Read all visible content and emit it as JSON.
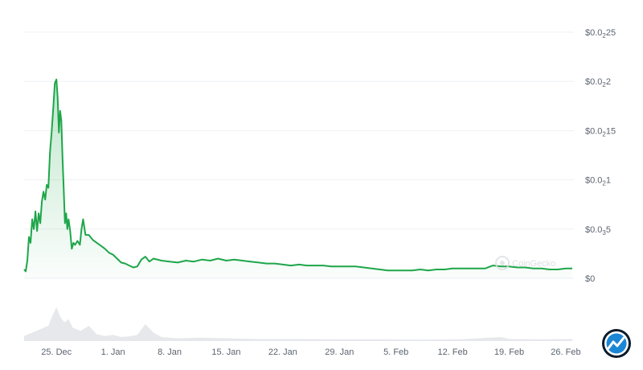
{
  "chart_data": {
    "type": "area",
    "title": "",
    "xlabel": "",
    "ylabel": "",
    "y_tick_labels": [
      {
        "value": 0,
        "base": "$0",
        "sub": "",
        "tail": ""
      },
      {
        "value": 0.0005,
        "base": "$0.0",
        "sub": "3",
        "tail": "5"
      },
      {
        "value": 0.001,
        "base": "$0.0",
        "sub": "2",
        "tail": "1"
      },
      {
        "value": 0.0015,
        "base": "$0.0",
        "sub": "2",
        "tail": "15"
      },
      {
        "value": 0.002,
        "base": "$0.0",
        "sub": "2",
        "tail": "2"
      },
      {
        "value": 0.0025,
        "base": "$0.0",
        "sub": "2",
        "tail": "25"
      }
    ],
    "ylim": [
      0,
      0.0025
    ],
    "x_tick_labels": [
      "25. Dec",
      "1. Jan",
      "8. Jan",
      "15. Jan",
      "22. Jan",
      "29. Jan",
      "5. Feb",
      "12. Feb",
      "19. Feb",
      "26. Feb"
    ],
    "x_tick_days": [
      0,
      7,
      14,
      21,
      28,
      35,
      42,
      49,
      56,
      63
    ],
    "xlim_days": [
      -4,
      64
    ],
    "grid": true,
    "line_color": "#1ea64a",
    "fill_color": "#1ea64a",
    "volume_color": "#e6e8eb",
    "series": [
      {
        "values": [
          [
            -4.0,
            9e-05
          ],
          [
            -3.8,
            7e-05
          ],
          [
            -3.6,
            0.00018
          ],
          [
            -3.4,
            0.00042
          ],
          [
            -3.2,
            0.00036
          ],
          [
            -3.0,
            0.0006
          ],
          [
            -2.8,
            0.0005
          ],
          [
            -2.6,
            0.00068
          ],
          [
            -2.4,
            0.00048
          ],
          [
            -2.2,
            0.00066
          ],
          [
            -2.0,
            0.00056
          ],
          [
            -1.8,
            0.00078
          ],
          [
            -1.6,
            0.00088
          ],
          [
            -1.4,
            0.0008
          ],
          [
            -1.2,
            0.00095
          ],
          [
            -1.0,
            0.00092
          ],
          [
            -0.8,
            0.00128
          ],
          [
            -0.6,
            0.00148
          ],
          [
            -0.4,
            0.00172
          ],
          [
            -0.2,
            0.00198
          ],
          [
            0.0,
            0.00202
          ],
          [
            0.15,
            0.00184
          ],
          [
            0.3,
            0.00148
          ],
          [
            0.45,
            0.0017
          ],
          [
            0.6,
            0.0016
          ],
          [
            0.75,
            0.00122
          ],
          [
            0.9,
            0.0009
          ],
          [
            1.05,
            0.00056
          ],
          [
            1.2,
            0.00066
          ],
          [
            1.35,
            0.0005
          ],
          [
            1.5,
            0.0006
          ],
          [
            1.7,
            0.00048
          ],
          [
            1.9,
            0.0003
          ],
          [
            2.1,
            0.00036
          ],
          [
            2.3,
            0.00034
          ],
          [
            2.6,
            0.00038
          ],
          [
            2.9,
            0.00034
          ],
          [
            3.1,
            0.0005
          ],
          [
            3.3,
            0.0006
          ],
          [
            3.6,
            0.00044
          ],
          [
            4.0,
            0.00044
          ],
          [
            4.5,
            0.00039
          ],
          [
            5.0,
            0.00036
          ],
          [
            5.5,
            0.00033
          ],
          [
            6.0,
            0.0003
          ],
          [
            6.5,
            0.00026
          ],
          [
            7.0,
            0.00024
          ],
          [
            7.5,
            0.0002
          ],
          [
            8.0,
            0.00016
          ],
          [
            8.5,
            0.00015
          ],
          [
            9.0,
            0.00013
          ],
          [
            9.5,
            0.00011
          ],
          [
            10.0,
            0.00012
          ],
          [
            10.5,
            0.00019
          ],
          [
            11.0,
            0.00022
          ],
          [
            11.5,
            0.00017
          ],
          [
            12.0,
            0.0002
          ],
          [
            13.0,
            0.00018
          ],
          [
            14.0,
            0.00017
          ],
          [
            15.0,
            0.00016
          ],
          [
            16.0,
            0.00018
          ],
          [
            17.0,
            0.00017
          ],
          [
            18.0,
            0.00019
          ],
          [
            19.0,
            0.00018
          ],
          [
            20.0,
            0.0002
          ],
          [
            21.0,
            0.00018
          ],
          [
            22.0,
            0.00019
          ],
          [
            23.0,
            0.00018
          ],
          [
            24.0,
            0.00017
          ],
          [
            25.0,
            0.00016
          ],
          [
            26.0,
            0.00015
          ],
          [
            27.0,
            0.00015
          ],
          [
            28.0,
            0.00014
          ],
          [
            29.0,
            0.00013
          ],
          [
            30.0,
            0.00014
          ],
          [
            31.0,
            0.00013
          ],
          [
            32.0,
            0.00013
          ],
          [
            33.0,
            0.00013
          ],
          [
            34.0,
            0.00012
          ],
          [
            35.0,
            0.00012
          ],
          [
            36.0,
            0.00012
          ],
          [
            37.0,
            0.00012
          ],
          [
            38.0,
            0.00011
          ],
          [
            39.0,
            0.0001
          ],
          [
            40.0,
            9e-05
          ],
          [
            41.0,
            8e-05
          ],
          [
            42.0,
            8e-05
          ],
          [
            43.0,
            8e-05
          ],
          [
            44.0,
            8e-05
          ],
          [
            45.0,
            9e-05
          ],
          [
            46.0,
            8e-05
          ],
          [
            47.0,
            9e-05
          ],
          [
            48.0,
            9e-05
          ],
          [
            49.0,
            0.0001
          ],
          [
            50.0,
            0.0001
          ],
          [
            51.0,
            0.0001
          ],
          [
            52.0,
            0.0001
          ],
          [
            53.0,
            0.0001
          ],
          [
            54.0,
            0.00013
          ],
          [
            55.0,
            0.00012
          ],
          [
            56.0,
            0.00012
          ],
          [
            57.0,
            0.00011
          ],
          [
            58.0,
            0.00011
          ],
          [
            59.0,
            0.0001
          ],
          [
            60.0,
            0.0001
          ],
          [
            61.0,
            9e-05
          ],
          [
            62.0,
            9e-05
          ],
          [
            63.0,
            0.0001
          ],
          [
            63.8,
            0.0001
          ]
        ]
      }
    ],
    "volume": [
      [
        -4.0,
        0.15
      ],
      [
        -3.0,
        0.25
      ],
      [
        -2.0,
        0.35
      ],
      [
        -1.0,
        0.45
      ],
      [
        -0.5,
        0.75
      ],
      [
        0.0,
        1.0
      ],
      [
        0.5,
        0.7
      ],
      [
        1.0,
        0.55
      ],
      [
        1.5,
        0.65
      ],
      [
        2.0,
        0.4
      ],
      [
        3.0,
        0.3
      ],
      [
        4.0,
        0.45
      ],
      [
        5.0,
        0.2
      ],
      [
        6.0,
        0.15
      ],
      [
        7.0,
        0.18
      ],
      [
        8.0,
        0.12
      ],
      [
        9.0,
        0.14
      ],
      [
        10.0,
        0.18
      ],
      [
        11.0,
        0.5
      ],
      [
        12.0,
        0.25
      ],
      [
        13.0,
        0.12
      ],
      [
        15.0,
        0.08
      ],
      [
        18.0,
        0.1
      ],
      [
        21.0,
        0.08
      ],
      [
        25.0,
        0.06
      ],
      [
        30.0,
        0.06
      ],
      [
        35.0,
        0.05
      ],
      [
        40.0,
        0.05
      ],
      [
        45.0,
        0.04
      ],
      [
        50.0,
        0.05
      ],
      [
        55.0,
        0.12
      ],
      [
        56.0,
        0.06
      ],
      [
        60.0,
        0.05
      ],
      [
        63.8,
        0.06
      ]
    ]
  },
  "watermark": {
    "text": "CoinGecko"
  },
  "logo": {
    "icon": "chart-trend-badge-icon"
  }
}
